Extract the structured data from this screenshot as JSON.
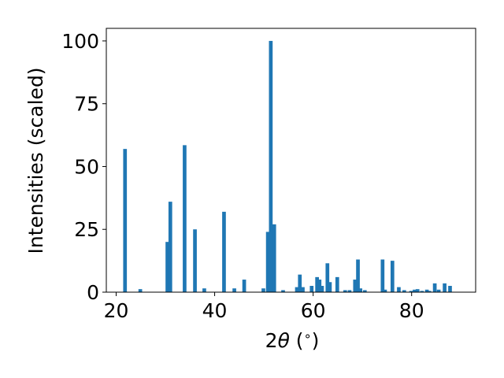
{
  "chart_data": {
    "type": "bar",
    "xlabel_parts": [
      "2",
      "θ",
      " (",
      "∘",
      ")"
    ],
    "ylabel": "Intensities (scaled)",
    "xlim": [
      18,
      93
    ],
    "ylim": [
      0,
      105
    ],
    "xticks": [
      20,
      40,
      60,
      80
    ],
    "yticks": [
      0,
      25,
      50,
      75,
      100
    ],
    "bar_width": 0.75,
    "grid": false,
    "bar_color": "#1f77b4",
    "series": [
      {
        "x": [
          21.8,
          24.9,
          30.4,
          31.0,
          33.9,
          36.0,
          37.9,
          41.9,
          44.0,
          46.0,
          49.9,
          50.8,
          51.4,
          52.1,
          53.9,
          56.7,
          57.3,
          57.9,
          59.7,
          60.8,
          61.3,
          61.8,
          62.9,
          63.4,
          64.9,
          66.5,
          67.4,
          68.5,
          69.1,
          69.6,
          70.5,
          74.1,
          74.6,
          76.1,
          77.4,
          78.5,
          79.9,
          80.6,
          81.2,
          82.1,
          83.1,
          83.6,
          84.7,
          85.5,
          86.7,
          87.8
        ],
        "values": [
          57,
          1.2,
          20,
          36,
          58.5,
          25,
          1.5,
          32,
          1.5,
          5,
          1.5,
          24,
          100,
          27,
          0.8,
          2,
          7,
          2,
          2.5,
          6,
          5,
          2.5,
          11.5,
          4,
          6,
          0.8,
          0.8,
          5,
          13,
          1.5,
          0.8,
          13,
          1,
          12.5,
          2,
          0.8,
          0.5,
          1,
          1.2,
          0.5,
          1,
          0.5,
          3.5,
          1,
          3.5,
          2.5
        ]
      }
    ]
  }
}
